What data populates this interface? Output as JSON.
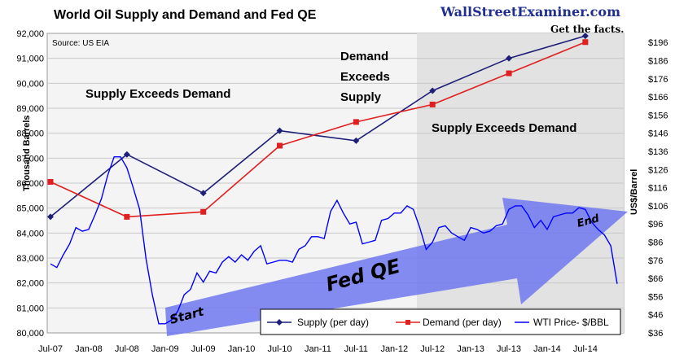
{
  "chart_data": {
    "type": "line",
    "title": "World Oil Supply and Demand and Fed QE",
    "source": "Source: US EIA",
    "brand": "WallStreetExaminer.com",
    "tagline": "Get the facts.",
    "ylabel_left": "Thousand Barrels",
    "ylabel_right": "US$/Barrel",
    "ylim_left": [
      80000,
      92000
    ],
    "ylim_right": [
      36,
      201
    ],
    "yticks_left": [
      "80,000",
      "81,000",
      "82,000",
      "83,000",
      "84,000",
      "85,000",
      "86,000",
      "87,000",
      "88,000",
      "89,000",
      "90,000",
      "91,000",
      "92,000"
    ],
    "yticks_right": [
      "$36",
      "$46",
      "$56",
      "$66",
      "$76",
      "$86",
      "$96",
      "$106",
      "$116",
      "$126",
      "$136",
      "$146",
      "$156",
      "$166",
      "$176",
      "$186",
      "$196"
    ],
    "xticks": [
      "Jul-07",
      "Jan-08",
      "Jul-08",
      "Jan-09",
      "Jul-09",
      "Jan-10",
      "Jul-10",
      "Jan-11",
      "Jul-11",
      "Jan-12",
      "Jul-12",
      "Jan-13",
      "Jul-13",
      "Jan-14",
      "Jul-14"
    ],
    "annotations": {
      "supply_exceeds_1": "Supply Exceeds Demand",
      "demand_line1": "Demand",
      "demand_line2": "Exceeds",
      "demand_line3": "Supply",
      "supply_exceeds_2": "Supply Exceeds Demand",
      "start": "Start",
      "fed_qe": "Fed QE",
      "end": "End"
    },
    "series": [
      {
        "name": "Supply (per day)",
        "color": "#1f1f7a",
        "x": [
          2007.5,
          2008.5,
          2009.5,
          2010.5,
          2011.5,
          2012.5,
          2013.5,
          2014.5
        ],
        "values": [
          84650,
          87150,
          85600,
          88100,
          87700,
          89700,
          91000,
          91900
        ]
      },
      {
        "name": "Demand (per day)",
        "color": "#e02020",
        "x": [
          2007.5,
          2008.5,
          2009.5,
          2010.5,
          2011.5,
          2012.5,
          2013.5,
          2014.5
        ],
        "values": [
          86050,
          84650,
          84850,
          87500,
          88450,
          89150,
          90400,
          91650
        ]
      },
      {
        "name": "WTI Price- $/BBL",
        "color": "#0000ff",
        "axis": "right",
        "x": [
          2007.5,
          2007.583,
          2007.667,
          2007.75,
          2007.833,
          2007.917,
          2008.0,
          2008.083,
          2008.167,
          2008.25,
          2008.333,
          2008.417,
          2008.5,
          2008.583,
          2008.667,
          2008.75,
          2008.833,
          2008.917,
          2009.0,
          2009.083,
          2009.167,
          2009.25,
          2009.333,
          2009.417,
          2009.5,
          2009.583,
          2009.667,
          2009.75,
          2009.833,
          2009.917,
          2010.0,
          2010.083,
          2010.167,
          2010.25,
          2010.333,
          2010.417,
          2010.5,
          2010.583,
          2010.667,
          2010.75,
          2010.833,
          2010.917,
          2011.0,
          2011.083,
          2011.167,
          2011.25,
          2011.333,
          2011.417,
          2011.5,
          2011.583,
          2011.667,
          2011.75,
          2011.833,
          2011.917,
          2012.0,
          2012.083,
          2012.167,
          2012.25,
          2012.333,
          2012.417,
          2012.5,
          2012.583,
          2012.667,
          2012.75,
          2012.833,
          2012.917,
          2013.0,
          2013.083,
          2013.167,
          2013.25,
          2013.333,
          2013.417,
          2013.5,
          2013.583,
          2013.667,
          2013.75,
          2013.833,
          2013.917,
          2014.0,
          2014.083,
          2014.167,
          2014.25,
          2014.333,
          2014.417,
          2014.5,
          2014.583,
          2014.667,
          2014.75,
          2014.833,
          2014.917
        ],
        "values": [
          74,
          72,
          79,
          85,
          94,
          92,
          93,
          101,
          110,
          123,
          133,
          133,
          127,
          116,
          104,
          77,
          57,
          41,
          41,
          43,
          48,
          57,
          60,
          69,
          64,
          70,
          69,
          75,
          78,
          75,
          79,
          76,
          81,
          84,
          74,
          75,
          76,
          76,
          75,
          82,
          84,
          89,
          89,
          88,
          103,
          109,
          102,
          96,
          97,
          85,
          86,
          87,
          98,
          99,
          102,
          102,
          106,
          104,
          94,
          82,
          86,
          94,
          95,
          91,
          89,
          87,
          94,
          93,
          91,
          92,
          95,
          96,
          104,
          106,
          106,
          101,
          94,
          98,
          93,
          100,
          101,
          102,
          102,
          105,
          104,
          97,
          93,
          90,
          84,
          63
        ]
      }
    ],
    "legend_position": "bottom-right"
  }
}
